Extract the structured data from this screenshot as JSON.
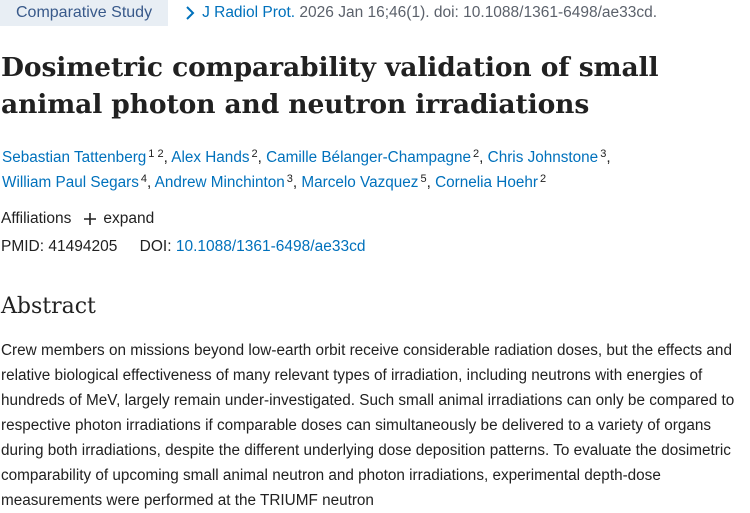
{
  "header": {
    "publication_type": "Comparative Study",
    "journal": "J Radiol Prot.",
    "citation": " 2026 Jan 16;46(1). doi: 10.1088/1361-6498/ae33cd."
  },
  "title": "Dosimetric comparability validation of small animal photon and neutron irradiations",
  "authors": [
    {
      "name": "Sebastian Tattenberg",
      "affiliations": "1 2"
    },
    {
      "name": "Alex Hands",
      "affiliations": "2"
    },
    {
      "name": "Camille Bélanger-Champagne",
      "affiliations": "2"
    },
    {
      "name": "Chris Johnstone",
      "affiliations": "3"
    },
    {
      "name": "William Paul Segars",
      "affiliations": "4"
    },
    {
      "name": "Andrew Minchinton",
      "affiliations": "3"
    },
    {
      "name": "Marcelo Vazquez",
      "affiliations": "5"
    },
    {
      "name": "Cornelia Hoehr",
      "affiliations": "2"
    }
  ],
  "affiliations": {
    "label": "Affiliations",
    "expand_label": "expand"
  },
  "identifiers": {
    "pmid_label": "PMID: 41494205",
    "doi_label": "DOI:",
    "doi_value": "10.1088/1361-6498/ae33cd"
  },
  "abstract": {
    "heading": "Abstract",
    "text": "Crew members on missions beyond low-earth orbit receive considerable radiation doses, but the effects and relative biological effectiveness of many relevant types of irradiation, including neutrons with energies of hundreds of MeV, largely remain under-investigated. Such small animal irradiations can only be compared to respective photon irradiations if comparable doses can simultaneously be delivered to a variety of organs during both irradiations, despite the different underlying dose deposition patterns. To evaluate the dosimetric comparability of upcoming small animal neutron and photon irradiations, experimental depth-dose measurements were performed at the TRIUMF neutron"
  },
  "colors": {
    "link": "#0071bc",
    "badge_bg": "#e8eef4",
    "badge_text": "#38598a",
    "text": "#212121"
  }
}
